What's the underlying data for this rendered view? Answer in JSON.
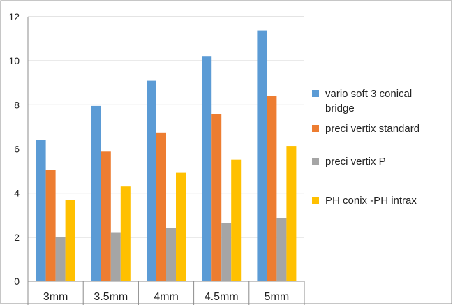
{
  "chart_data": {
    "type": "bar",
    "title": "",
    "xlabel": "",
    "ylabel": "",
    "categories": [
      "3mm",
      "3.5mm",
      "4mm",
      "4.5mm",
      "5mm"
    ],
    "series": [
      {
        "name": "vario soft 3 conical bridge",
        "legend_lines": [
          "vario soft 3 conical",
          "bridge"
        ],
        "color": "#5b9bd5",
        "values": [
          6.4,
          7.95,
          9.1,
          10.22,
          11.38
        ]
      },
      {
        "name": "preci vertix standard",
        "legend_lines": [
          "preci vertix standard"
        ],
        "color": "#ed7d31",
        "values": [
          5.05,
          5.88,
          6.75,
          7.58,
          8.42
        ]
      },
      {
        "name": "preci vertix P",
        "legend_lines": [
          "preci vertix P"
        ],
        "color": "#a5a5a5",
        "values": [
          2.0,
          2.2,
          2.42,
          2.65,
          2.88
        ]
      },
      {
        "name": "PH conix -PH intrax",
        "legend_lines": [
          "PH conix -PH intrax"
        ],
        "color": "#ffc000",
        "values": [
          3.68,
          4.3,
          4.92,
          5.52,
          6.14
        ]
      }
    ],
    "ylim": [
      0,
      12
    ],
    "yticks": [
      0,
      2,
      4,
      6,
      8,
      10,
      12
    ],
    "grid": "horizontal",
    "legend": "right"
  }
}
